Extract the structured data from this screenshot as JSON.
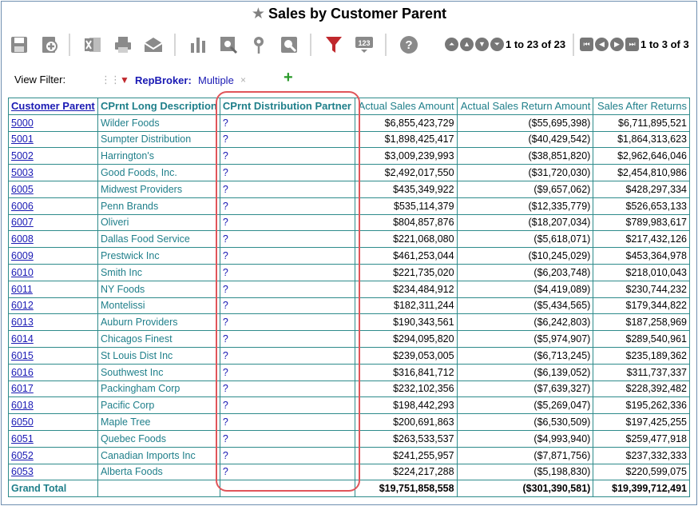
{
  "title": "Sales by Customer Parent",
  "toolbar": {
    "icons": [
      "save-icon",
      "add-icon",
      "excel-icon",
      "print-icon",
      "email-icon",
      "bar-chart-icon",
      "search-report-icon",
      "map-pin-icon",
      "zoom-icon",
      "filter-icon",
      "number-icon",
      "help-icon"
    ],
    "row_pager": "1 to 23 of 23",
    "col_pager": "1 to 3 of 3"
  },
  "filter": {
    "label": "View Filter:",
    "name": "RepBroker:",
    "value": "Multiple",
    "remove": "×",
    "add": "+"
  },
  "table": {
    "headers": [
      "Customer Parent",
      "CPrnt Long Description",
      "CPrnt Distribution Partner",
      "Actual Sales Amount",
      "Actual Sales Return Amount",
      "Sales After Returns"
    ],
    "rows": [
      [
        "5000",
        "Wilder Foods",
        "?",
        "$6,855,423,729",
        "($55,695,398)",
        "$6,711,895,521"
      ],
      [
        "5001",
        "Sumpter Distribution",
        "?",
        "$1,898,425,417",
        "($40,429,542)",
        "$1,864,313,623"
      ],
      [
        "5002",
        "Harrington's",
        "?",
        "$3,009,239,993",
        "($38,851,820)",
        "$2,962,646,046"
      ],
      [
        "5003",
        "Good Foods, Inc.",
        "?",
        "$2,492,017,550",
        "($31,720,030)",
        "$2,454,810,986"
      ],
      [
        "6005",
        "Midwest Providers",
        "?",
        "$435,349,922",
        "($9,657,062)",
        "$428,297,334"
      ],
      [
        "6006",
        "Penn Brands",
        "?",
        "$535,114,379",
        "($12,335,779)",
        "$526,653,133"
      ],
      [
        "6007",
        "Oliveri",
        "?",
        "$804,857,876",
        "($18,207,034)",
        "$789,983,617"
      ],
      [
        "6008",
        "Dallas Food Service",
        "?",
        "$221,068,080",
        "($5,618,071)",
        "$217,432,126"
      ],
      [
        "6009",
        "Prestwick Inc",
        "?",
        "$461,253,044",
        "($10,245,029)",
        "$453,364,978"
      ],
      [
        "6010",
        "Smith Inc",
        "?",
        "$221,735,020",
        "($6,203,748)",
        "$218,010,043"
      ],
      [
        "6011",
        "NY Foods",
        "?",
        "$234,484,912",
        "($4,419,089)",
        "$230,744,232"
      ],
      [
        "6012",
        "Montelissi",
        "?",
        "$182,311,244",
        "($5,434,565)",
        "$179,344,822"
      ],
      [
        "6013",
        "Auburn Providers",
        "?",
        "$190,343,561",
        "($6,242,803)",
        "$187,258,969"
      ],
      [
        "6014",
        "Chicagos Finest",
        "?",
        "$294,095,820",
        "($5,974,907)",
        "$289,540,961"
      ],
      [
        "6015",
        "St Louis Dist Inc",
        "?",
        "$239,053,005",
        "($6,713,245)",
        "$235,189,362"
      ],
      [
        "6016",
        "Southwest Inc",
        "?",
        "$316,841,712",
        "($6,139,052)",
        "$311,737,337"
      ],
      [
        "6017",
        "Packingham Corp",
        "?",
        "$232,102,356",
        "($7,639,327)",
        "$228,392,482"
      ],
      [
        "6018",
        "Pacific Corp",
        "?",
        "$198,442,293",
        "($5,269,047)",
        "$195,262,336"
      ],
      [
        "6050",
        "Maple Tree",
        "?",
        "$200,691,863",
        "($6,530,509)",
        "$197,425,255"
      ],
      [
        "6051",
        "Quebec Foods",
        "?",
        "$263,533,537",
        "($4,993,940)",
        "$259,477,918"
      ],
      [
        "6052",
        "Canadian Imports Inc",
        "?",
        "$241,255,957",
        "($7,871,756)",
        "$237,332,333"
      ],
      [
        "6053",
        "Alberta Foods",
        "?",
        "$224,217,288",
        "($5,198,830)",
        "$220,599,075"
      ]
    ],
    "total": {
      "label": "Grand Total",
      "sales": "$19,751,858,558",
      "returns": "($301,390,581)",
      "after": "$19,399,712,491"
    }
  },
  "colors": {
    "teal": "#1f7f8a",
    "link": "#1a1ab4",
    "highlight": "#e0555a",
    "filter_icon": "#c0282d",
    "add": "#2a9a2a"
  }
}
